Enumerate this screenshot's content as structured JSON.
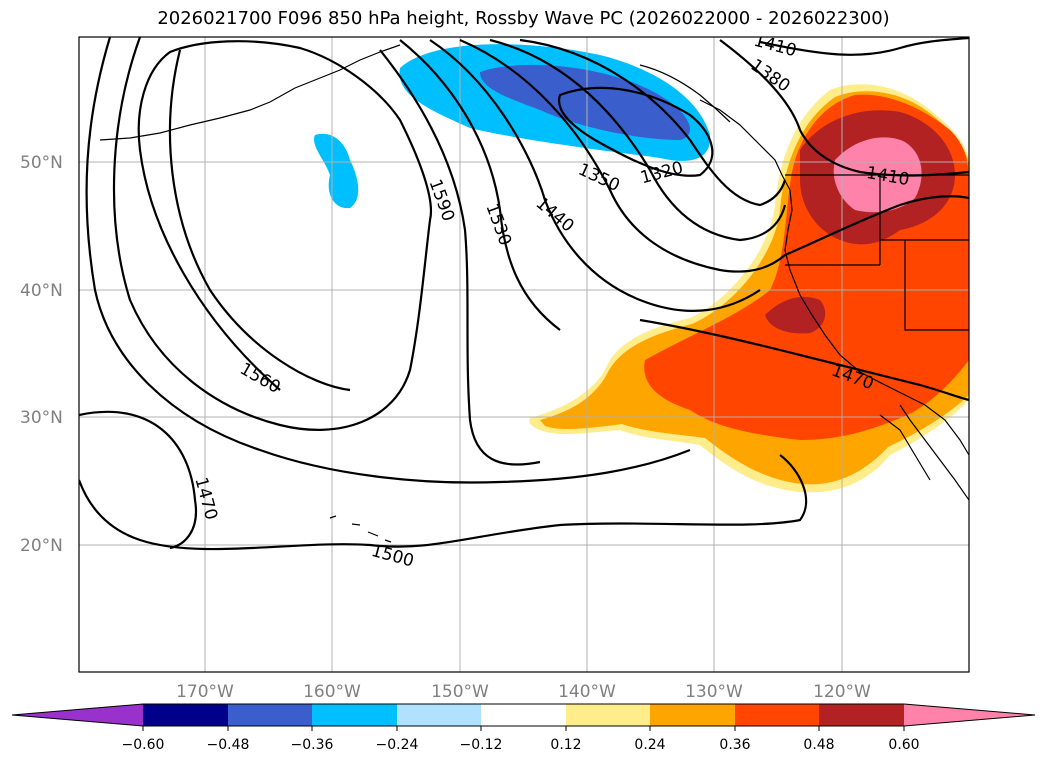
{
  "title": "2026021700 F096 850 hPa height, Rossby Wave PC (2026022000 - 2026022300)",
  "lat_labels": [
    "50°N",
    "40°N",
    "30°N",
    "20°N"
  ],
  "lon_labels": [
    "170°W",
    "160°W",
    "150°W",
    "140°W",
    "130°W",
    "120°W"
  ],
  "colorbar": {
    "colors": [
      "#9932cc",
      "#00008b",
      "#3a5fcd",
      "#00bfff",
      "#b0e2ff",
      "#ffffff",
      "#ffec8b",
      "#ffa500",
      "#ff4500",
      "#b22222",
      "#ff82ab"
    ],
    "tick_labels": [
      "−0.60",
      "−0.48",
      "−0.36",
      "−0.24",
      "−0.12",
      "0.12",
      "0.24",
      "0.36",
      "0.48",
      "0.60"
    ]
  },
  "contour_labels": [
    "1410",
    "1380",
    "1320",
    "1350",
    "1590",
    "1530",
    "1440",
    "1410",
    "1560",
    "1470",
    "1470",
    "1500"
  ]
}
